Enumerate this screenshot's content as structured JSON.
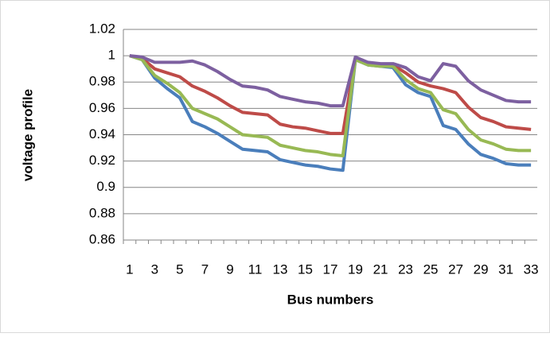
{
  "chart_data": {
    "type": "line",
    "y_label": "voltage profile",
    "x_label": "Bus numbers",
    "categories": [
      1,
      null,
      3,
      null,
      5,
      null,
      7,
      null,
      9,
      null,
      11,
      null,
      13,
      null,
      15,
      null,
      17,
      null,
      19,
      null,
      21,
      null,
      23,
      null,
      25,
      null,
      27,
      null,
      29,
      null,
      31,
      null,
      33
    ],
    "series": [
      {
        "color": "#4a7ebb",
        "values": [
          1,
          0.997,
          0.983,
          0.975,
          0.968,
          0.95,
          0.946,
          0.941,
          0.935,
          0.929,
          0.928,
          0.927,
          0.921,
          0.919,
          0.917,
          0.916,
          0.914,
          0.913,
          0.997,
          0.993,
          0.992,
          0.991,
          0.978,
          0.972,
          0.969,
          0.947,
          0.944,
          0.933,
          0.925,
          0.922,
          0.918,
          0.917,
          0.917
        ]
      },
      {
        "color": "#be4b48",
        "values": [
          1,
          0.998,
          0.99,
          0.987,
          0.984,
          0.977,
          0.973,
          0.968,
          0.962,
          0.957,
          0.956,
          0.955,
          0.948,
          0.946,
          0.945,
          0.943,
          0.941,
          0.941,
          0.998,
          0.994,
          0.993,
          0.993,
          0.987,
          0.98,
          0.977,
          0.975,
          0.972,
          0.961,
          0.953,
          0.95,
          0.946,
          0.945,
          0.944
        ]
      },
      {
        "color": "#98b954",
        "values": [
          1,
          0.997,
          0.985,
          0.979,
          0.972,
          0.96,
          0.956,
          0.952,
          0.946,
          0.94,
          0.939,
          0.938,
          0.932,
          0.93,
          0.928,
          0.927,
          0.925,
          0.924,
          0.997,
          0.993,
          0.992,
          0.992,
          0.982,
          0.975,
          0.972,
          0.959,
          0.956,
          0.944,
          0.936,
          0.933,
          0.929,
          0.928,
          0.928
        ]
      },
      {
        "color": "#7d60a0",
        "values": [
          1,
          0.999,
          0.995,
          0.995,
          0.995,
          0.996,
          0.993,
          0.988,
          0.982,
          0.977,
          0.976,
          0.974,
          0.969,
          0.967,
          0.965,
          0.964,
          0.962,
          0.962,
          0.999,
          0.995,
          0.994,
          0.994,
          0.991,
          0.984,
          0.981,
          0.994,
          0.992,
          0.981,
          0.974,
          0.97,
          0.966,
          0.965,
          0.965
        ]
      }
    ],
    "ylim": [
      0.86,
      1.02
    ],
    "yticks": [
      0.86,
      0.88,
      0.9,
      0.92,
      0.94,
      0.96,
      0.98,
      1,
      1.02
    ],
    "grid": true
  }
}
